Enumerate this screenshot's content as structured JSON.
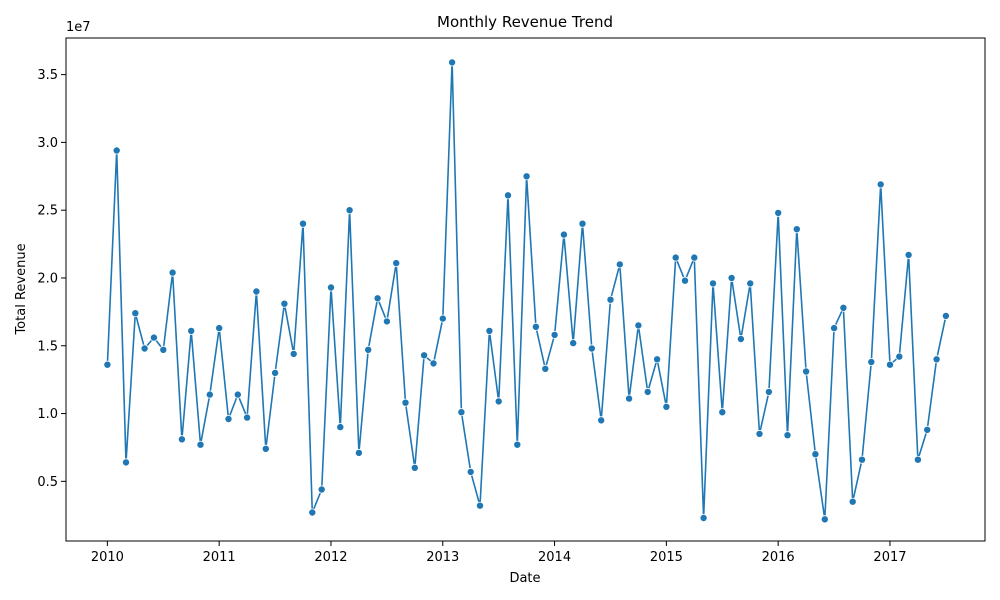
{
  "chart_data": {
    "type": "line",
    "title": "Monthly Revenue Trend",
    "xlabel": "Date",
    "ylabel": "Total Revenue",
    "y_multiplier_label": "1e7",
    "y_multiplier": 10000000,
    "xlim": [
      2009.63,
      2017.85
    ],
    "ylim": [
      0.06,
      3.77
    ],
    "x_ticks": [
      2010,
      2011,
      2012,
      2013,
      2014,
      2015,
      2016,
      2017
    ],
    "x_tick_labels": [
      "2010",
      "2011",
      "2012",
      "2013",
      "2014",
      "2015",
      "2016",
      "2017"
    ],
    "y_ticks": [
      0.5,
      1.0,
      1.5,
      2.0,
      2.5,
      3.0,
      3.5
    ],
    "y_tick_labels": [
      "0.5",
      "1.0",
      "1.5",
      "2.0",
      "2.5",
      "3.0",
      "3.5"
    ],
    "grid": false,
    "series": [
      {
        "color": "#1f77b4",
        "x": [
          "2010-01",
          "2010-02",
          "2010-03",
          "2010-04",
          "2010-05",
          "2010-06",
          "2010-07",
          "2010-08",
          "2010-09",
          "2010-10",
          "2010-11",
          "2010-12",
          "2011-01",
          "2011-02",
          "2011-03",
          "2011-04",
          "2011-05",
          "2011-06",
          "2011-07",
          "2011-08",
          "2011-09",
          "2011-10",
          "2011-11",
          "2011-12",
          "2012-01",
          "2012-02",
          "2012-03",
          "2012-04",
          "2012-05",
          "2012-06",
          "2012-07",
          "2012-08",
          "2012-09",
          "2012-10",
          "2012-11",
          "2012-12",
          "2013-01",
          "2013-02",
          "2013-03",
          "2013-04",
          "2013-05",
          "2013-06",
          "2013-07",
          "2013-08",
          "2013-09",
          "2013-10",
          "2013-11",
          "2013-12",
          "2014-01",
          "2014-02",
          "2014-03",
          "2014-04",
          "2014-05",
          "2014-06",
          "2014-07",
          "2014-08",
          "2014-09",
          "2014-10",
          "2014-11",
          "2014-12",
          "2015-01",
          "2015-02",
          "2015-03",
          "2015-04",
          "2015-05",
          "2015-06",
          "2015-07",
          "2015-08",
          "2015-09",
          "2015-10",
          "2015-11",
          "2015-12",
          "2016-01",
          "2016-02",
          "2016-03",
          "2016-04",
          "2016-05",
          "2016-06",
          "2016-07",
          "2016-08",
          "2016-09",
          "2016-10",
          "2016-11",
          "2016-12",
          "2017-01",
          "2017-02",
          "2017-03",
          "2017-04",
          "2017-05",
          "2017-06",
          "2017-07"
        ],
        "values": [
          1.36,
          2.94,
          0.64,
          1.74,
          1.48,
          1.56,
          1.47,
          2.04,
          0.81,
          1.61,
          0.77,
          1.14,
          1.63,
          0.96,
          1.14,
          0.97,
          1.9,
          0.74,
          1.3,
          1.81,
          1.44,
          2.4,
          0.27,
          0.44,
          1.93,
          0.9,
          2.5,
          0.71,
          1.47,
          1.85,
          1.68,
          2.11,
          1.08,
          0.6,
          1.43,
          1.37,
          1.7,
          3.59,
          1.01,
          0.57,
          0.32,
          1.61,
          1.09,
          2.61,
          0.77,
          2.75,
          1.64,
          1.33,
          1.58,
          2.32,
          1.52,
          2.4,
          1.48,
          0.95,
          1.84,
          2.1,
          1.11,
          1.65,
          1.16,
          1.4,
          1.05,
          2.15,
          1.98,
          2.15,
          0.23,
          1.96,
          1.01,
          2.0,
          1.55,
          1.96,
          0.85,
          1.16,
          2.48,
          0.84,
          2.36,
          1.31,
          0.7,
          0.22,
          1.63,
          1.78,
          0.35,
          0.66,
          1.38,
          2.69,
          1.36,
          1.42,
          2.17,
          0.66,
          0.88,
          1.4,
          1.72
        ]
      }
    ]
  }
}
